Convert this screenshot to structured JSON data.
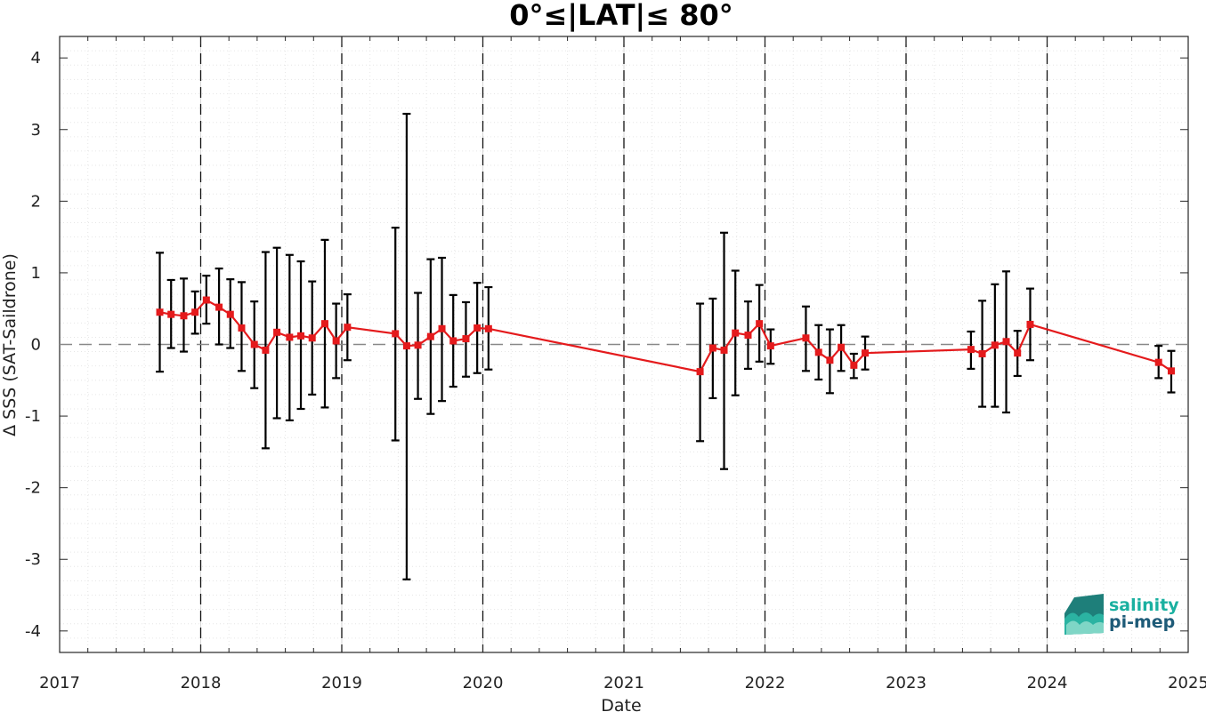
{
  "chart_data": {
    "type": "line",
    "title": "0°≤|LAT|≤ 80°",
    "xlabel": "Date",
    "ylabel": "Δ SSS (SAT-Saildrone)",
    "xlim": [
      2017,
      2025
    ],
    "ylim": [
      -4.3,
      4.3
    ],
    "xticks": [
      2017,
      2018,
      2019,
      2020,
      2021,
      2022,
      2023,
      2024,
      2025
    ],
    "xtick_labels": [
      "2017",
      "2018",
      "2019",
      "2020",
      "2021",
      "2022",
      "2023",
      "2024",
      "2025"
    ],
    "yticks": [
      -4,
      -3,
      -2,
      -1,
      0,
      1,
      2,
      3,
      4
    ],
    "ytick_labels": [
      "-4",
      "-3",
      "-2",
      "-1",
      "0",
      "1",
      "2",
      "3",
      "4"
    ],
    "grid": true,
    "year_separators": [
      2018,
      2019,
      2020,
      2021,
      2022,
      2023,
      2024
    ],
    "zero_line": 0,
    "series": [
      {
        "color": "#e41a1c",
        "errorbar_color": "#000000",
        "x": [
          2017.71,
          2017.79,
          2017.88,
          2017.96,
          2018.04,
          2018.13,
          2018.21,
          2018.29,
          2018.38,
          2018.46,
          2018.54,
          2018.63,
          2018.71,
          2018.79,
          2018.88,
          2018.96,
          2019.04,
          2019.38,
          2019.46,
          2019.54,
          2019.63,
          2019.71,
          2019.79,
          2019.88,
          2019.96,
          2020.04,
          2021.54,
          2021.63,
          2021.71,
          2021.79,
          2021.88,
          2021.96,
          2022.04,
          2022.29,
          2022.38,
          2022.46,
          2022.54,
          2022.63,
          2022.71,
          2023.46,
          2023.54,
          2023.63,
          2023.71,
          2023.79,
          2023.88,
          2024.79,
          2024.88
        ],
        "y": [
          0.45,
          0.42,
          0.4,
          0.45,
          0.62,
          0.52,
          0.42,
          0.23,
          0.0,
          -0.08,
          0.17,
          0.1,
          0.12,
          0.09,
          0.29,
          0.05,
          0.24,
          0.15,
          -0.02,
          -0.01,
          0.11,
          0.22,
          0.05,
          0.08,
          0.23,
          0.22,
          -0.38,
          -0.05,
          -0.08,
          0.16,
          0.13,
          0.29,
          -0.02,
          0.09,
          -0.11,
          -0.22,
          -0.04,
          -0.29,
          -0.12,
          -0.07,
          -0.13,
          -0.01,
          0.04,
          -0.12,
          0.28,
          -0.25,
          -0.37
        ],
        "err_low": [
          -0.38,
          -0.05,
          -0.1,
          0.15,
          0.29,
          0.0,
          -0.05,
          -0.37,
          -0.61,
          -1.45,
          -1.03,
          -1.06,
          -0.9,
          -0.7,
          -0.88,
          -0.47,
          -0.22,
          -1.34,
          -3.28,
          -0.76,
          -0.97,
          -0.79,
          -0.59,
          -0.45,
          -0.4,
          -0.35,
          -1.35,
          -0.75,
          -1.74,
          -0.71,
          -0.34,
          -0.24,
          -0.27,
          -0.37,
          -0.49,
          -0.68,
          -0.37,
          -0.47,
          -0.35,
          -0.34,
          -0.87,
          -0.87,
          -0.95,
          -0.44,
          -0.22,
          -0.47,
          -0.67
        ],
        "err_high": [
          1.28,
          0.9,
          0.92,
          0.74,
          0.96,
          1.06,
          0.91,
          0.87,
          0.6,
          1.29,
          1.35,
          1.25,
          1.16,
          0.88,
          1.46,
          0.57,
          0.7,
          1.63,
          3.22,
          0.72,
          1.19,
          1.21,
          0.69,
          0.59,
          0.86,
          0.8,
          0.57,
          0.64,
          1.56,
          1.03,
          0.6,
          0.83,
          0.21,
          0.53,
          0.27,
          0.21,
          0.27,
          -0.13,
          0.11,
          0.18,
          0.61,
          0.84,
          1.02,
          0.19,
          0.78,
          -0.02,
          -0.09
        ]
      }
    ]
  },
  "logo": {
    "line1": "salinity",
    "line2": "pi-mep",
    "color1": "#1ab0a0",
    "color2": "#1e5b78"
  }
}
